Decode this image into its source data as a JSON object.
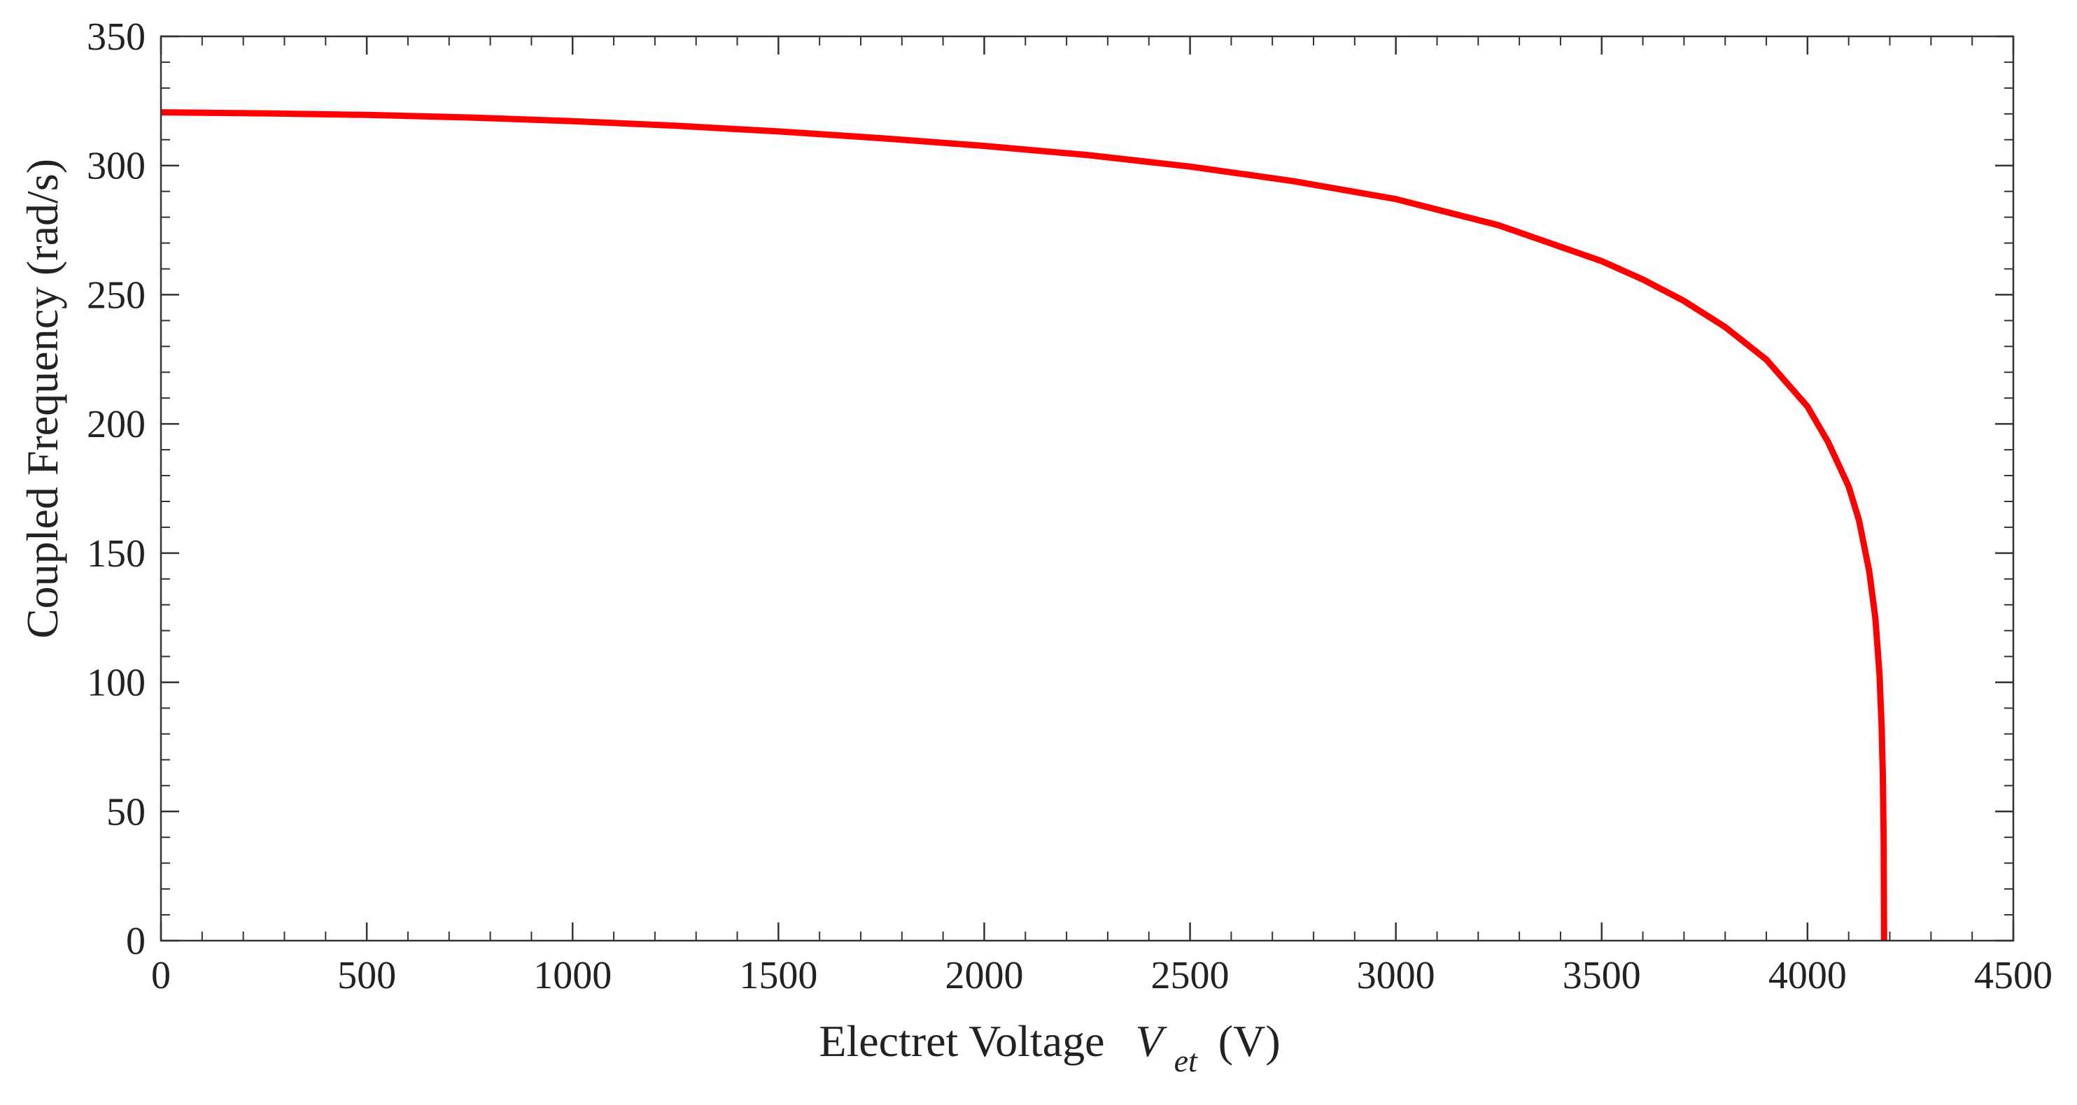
{
  "chart_data": {
    "type": "line",
    "title": "",
    "xlabel": "Electret Voltage",
    "xlabel_symbol": "V",
    "xlabel_subscript": "et",
    "xlabel_unit": "(V)",
    "ylabel": "Coupled Frequency (rad/s)",
    "xlim": [
      0,
      4500
    ],
    "ylim": [
      0,
      350
    ],
    "x_ticks": [
      0,
      500,
      1000,
      1500,
      2000,
      2500,
      3000,
      3500,
      4000,
      4500
    ],
    "y_ticks": [
      0,
      50,
      100,
      150,
      200,
      250,
      300,
      350
    ],
    "x_ticklabels": [
      "0",
      "500",
      "1000",
      "1500",
      "2000",
      "2500",
      "3000",
      "3500",
      "4000",
      "4500"
    ],
    "y_ticklabels": [
      "0",
      "50",
      "100",
      "150",
      "200",
      "250",
      "300",
      "350"
    ],
    "x_minor_step": 100,
    "y_minor_step": 10,
    "grid": false,
    "legend": "none",
    "series": [
      {
        "name": "coupled-frequency",
        "color": "#ff0000",
        "x": [
          0,
          250,
          500,
          750,
          1000,
          1250,
          1500,
          1750,
          2000,
          2250,
          2500,
          2750,
          3000,
          3250,
          3500,
          3600,
          3700,
          3800,
          3900,
          4000,
          4050,
          4100,
          4125,
          4150,
          4165,
          4175,
          4180,
          4183,
          4185,
          4186
        ],
        "y": [
          320.6,
          320.2,
          319.6,
          318.6,
          317.2,
          315.4,
          313.2,
          310.6,
          307.6,
          304.1,
          299.6,
          294.0,
          287.0,
          276.9,
          263.0,
          255.9,
          247.6,
          237.5,
          224.9,
          206.7,
          193.0,
          175.8,
          162.8,
          143.0,
          124.7,
          103.0,
          83.0,
          64.5,
          40.0,
          0.0
        ]
      }
    ]
  }
}
